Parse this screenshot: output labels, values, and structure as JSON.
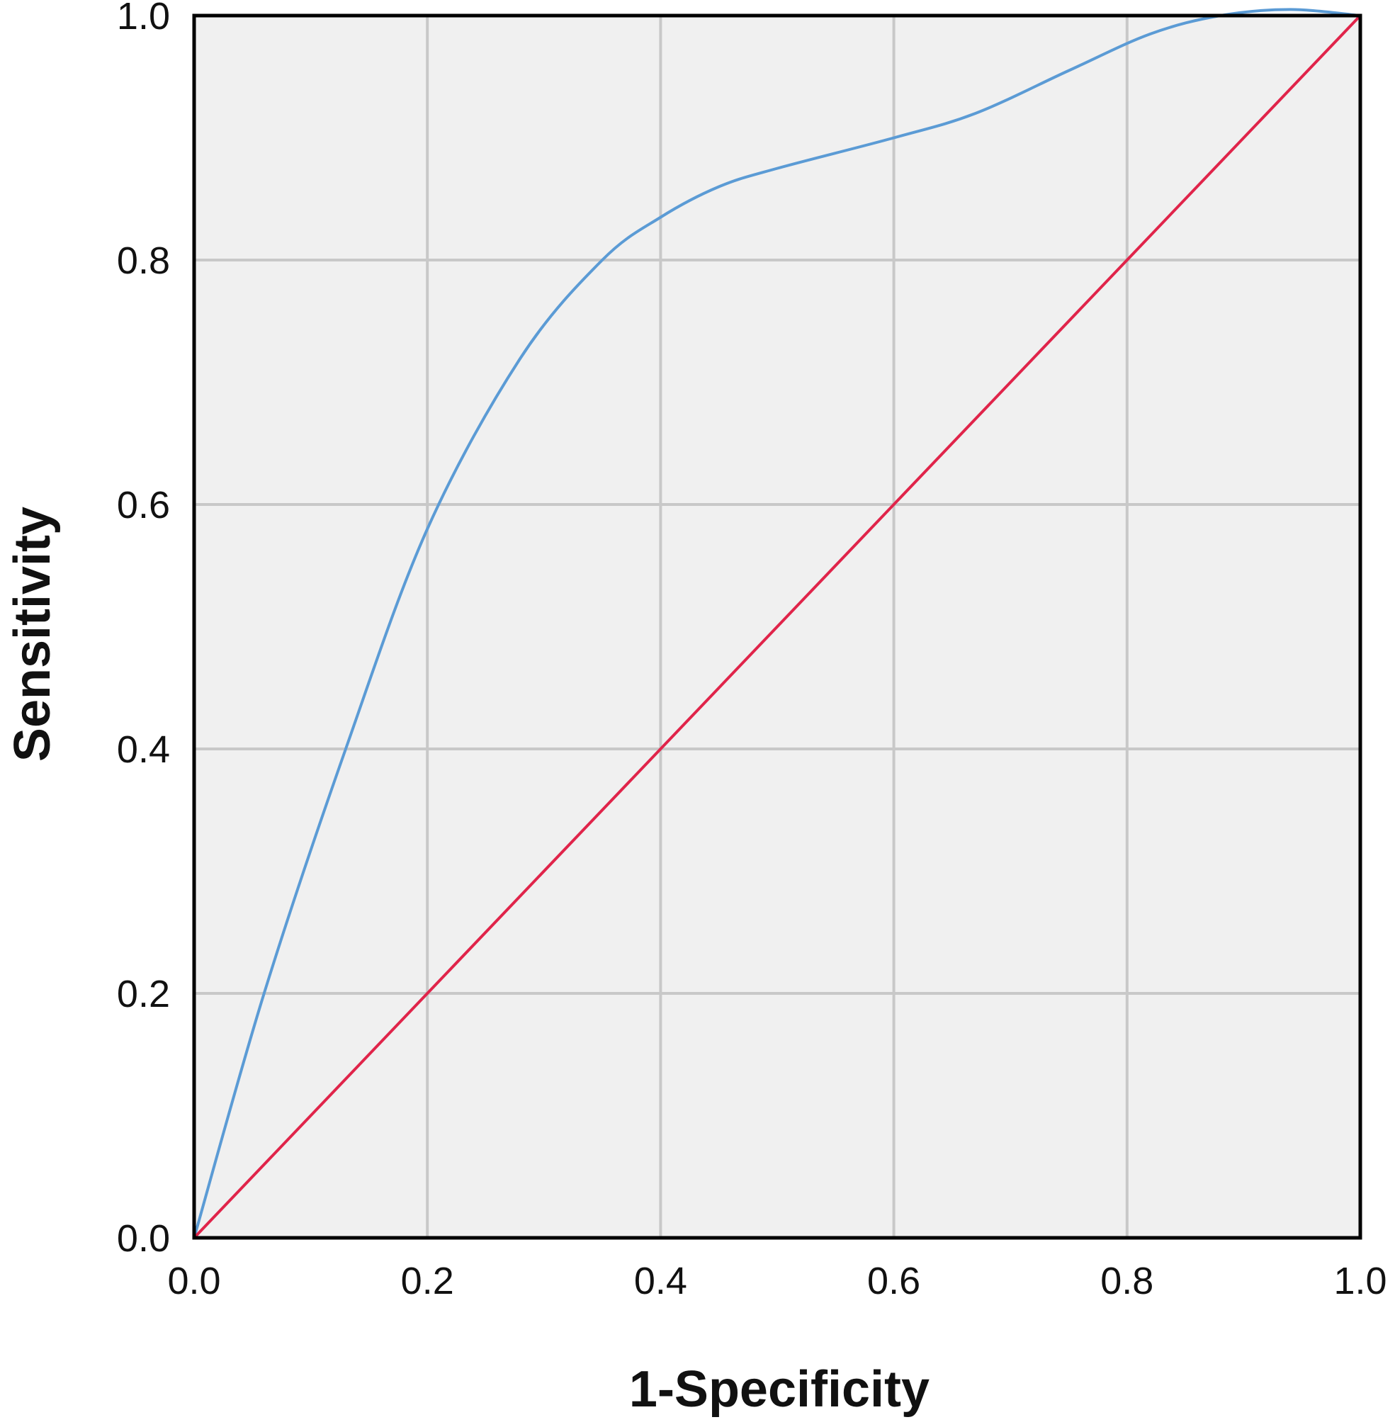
{
  "chart_data": {
    "type": "line",
    "title": "",
    "xlabel": "1-Specificity",
    "ylabel": "Sensitivity",
    "xlim": [
      0.0,
      1.0
    ],
    "ylim": [
      0.0,
      1.0
    ],
    "x_ticks": [
      "0.0",
      "0.2",
      "0.4",
      "0.6",
      "0.8",
      "1.0"
    ],
    "y_ticks": [
      "0.0",
      "0.2",
      "0.4",
      "0.6",
      "0.8",
      "1.0"
    ],
    "grid": true,
    "legend": "none",
    "background_color": "#f0f0f0",
    "grid_color": "#c8c8c8",
    "series": [
      {
        "color": "#5b9bd5",
        "smooth": true,
        "x": [
          0.0,
          0.06,
          0.13,
          0.2,
          0.28,
          0.35,
          0.4,
          0.45,
          0.5,
          0.6,
          0.67,
          0.75,
          0.82,
          0.88,
          0.94,
          1.0
        ],
        "y": [
          0.0,
          0.2,
          0.4,
          0.58,
          0.72,
          0.8,
          0.835,
          0.86,
          0.875,
          0.9,
          0.92,
          0.955,
          0.985,
          1.0,
          1.005,
          1.0
        ]
      },
      {
        "color": "#e0244a",
        "smooth": false,
        "x": [
          0.0,
          1.0
        ],
        "y": [
          0.0,
          1.0
        ]
      }
    ]
  }
}
